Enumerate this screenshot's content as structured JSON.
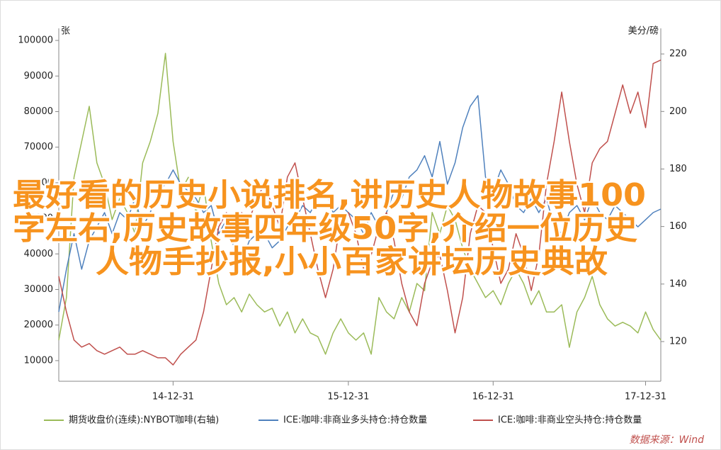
{
  "chart_data": {
    "type": "line",
    "y_label": "张",
    "y2_label": "美分/磅",
    "source": "数据来源：Wind",
    "annotations": [
      "最好看的历史小说排名,讲历史人物故事100",
      "字左右,历史故事四年级50字,介绍一位历史",
      "人物手抄报,小小百家讲坛历史典故"
    ],
    "categories": [
      null,
      null,
      null,
      null,
      null,
      null,
      null,
      null,
      null,
      null,
      null,
      null,
      null,
      null,
      null,
      "14-12-31",
      null,
      null,
      null,
      null,
      null,
      null,
      null,
      null,
      null,
      null,
      null,
      null,
      null,
      null,
      null,
      null,
      null,
      null,
      null,
      null,
      null,
      null,
      "15-12-31",
      null,
      null,
      null,
      null,
      null,
      null,
      null,
      null,
      null,
      null,
      null,
      null,
      null,
      null,
      null,
      null,
      null,
      null,
      "16-12-31",
      null,
      null,
      null,
      null,
      null,
      null,
      null,
      null,
      null,
      null,
      null,
      null,
      null,
      null,
      null,
      null,
      null,
      null,
      null,
      "17-12-31",
      null,
      null
    ],
    "ylim": [
      4200,
      103400
    ],
    "yticks": [
      10000,
      20000,
      30000,
      40000,
      50000,
      60000,
      70000,
      80000,
      90000,
      100000
    ],
    "y2lim": [
      106.2,
      228.9
    ],
    "y2ticks": [
      120,
      140,
      160,
      180,
      200,
      220
    ],
    "series": [
      {
        "name": "期货收盘价(连续):NYBOT咖啡(右轴)",
        "color": "#9bbb59",
        "axis": "y2",
        "values": [
          120.5,
          135.3,
          177.1,
          189.5,
          201.8,
          182.1,
          174.7,
          162.4,
          169.8,
          164.9,
          157.5,
          182.1,
          189.5,
          199.3,
          220.2,
          189.5,
          172.2,
          177.1,
          164.9,
          174.7,
          155.0,
          140.2,
          132.8,
          135.3,
          130.3,
          136.5,
          132.8,
          130.3,
          131.6,
          125.4,
          130.3,
          123.0,
          127.9,
          123.0,
          121.7,
          115.6,
          123.0,
          127.9,
          123.0,
          120.5,
          123.0,
          115.6,
          135.3,
          130.3,
          127.9,
          135.3,
          130.3,
          140.2,
          137.7,
          164.9,
          157.5,
          167.3,
          162.4,
          152.5,
          145.1,
          140.2,
          135.3,
          137.7,
          132.8,
          140.2,
          145.1,
          140.2,
          132.8,
          137.7,
          130.3,
          130.3,
          132.8,
          118.0,
          130.3,
          135.3,
          142.7,
          132.8,
          127.9,
          125.4,
          126.7,
          125.4,
          123.0,
          130.3,
          124.2,
          120.5
        ]
      },
      {
        "name": "ICE:咖啡:非商业多头持仓:持仓数量",
        "color": "#4f81bd",
        "values": [
          23700,
          35700,
          45700,
          35700,
          43700,
          47600,
          51600,
          45700,
          51600,
          49600,
          55600,
          47600,
          51600,
          57600,
          59600,
          63600,
          59600,
          57600,
          55600,
          51600,
          53600,
          45700,
          49600,
          41700,
          37700,
          43700,
          45700,
          45700,
          41700,
          43700,
          47600,
          49600,
          53600,
          51600,
          55600,
          57600,
          51600,
          53600,
          51600,
          49600,
          45700,
          51600,
          47600,
          51600,
          57600,
          55600,
          61600,
          63600,
          67600,
          61600,
          71600,
          59600,
          65600,
          75500,
          81500,
          84500,
          61600,
          57600,
          63600,
          59600,
          53600,
          51600,
          55600,
          51600,
          55600,
          47600,
          45700,
          51600,
          53600,
          49600,
          55600,
          51600,
          49600,
          53600,
          51600,
          49600,
          47600,
          49600,
          51600,
          52600
        ]
      },
      {
        "name": "ICE:咖啡:非商业空头持仓:持仓数量",
        "color": "#c0504d",
        "values": [
          33700,
          23700,
          15800,
          13800,
          14800,
          12800,
          11800,
          12800,
          13800,
          11800,
          11800,
          12800,
          11800,
          10800,
          10800,
          8800,
          11800,
          13800,
          15800,
          23700,
          35700,
          47600,
          51600,
          45700,
          51600,
          49600,
          55600,
          59600,
          53600,
          47600,
          61600,
          65600,
          55600,
          45700,
          35700,
          27700,
          35700,
          49600,
          51600,
          45700,
          35700,
          39700,
          47600,
          51600,
          43700,
          31700,
          23700,
          19800,
          31700,
          37700,
          39700,
          29700,
          17800,
          27700,
          45700,
          53600,
          51600,
          41700,
          31700,
          35700,
          45700,
          39700,
          29700,
          39700,
          59600,
          71600,
          85500,
          71600,
          59600,
          51600,
          65600,
          69600,
          71600,
          79500,
          87500,
          79500,
          85500,
          75500,
          93500,
          94500
        ]
      }
    ]
  }
}
